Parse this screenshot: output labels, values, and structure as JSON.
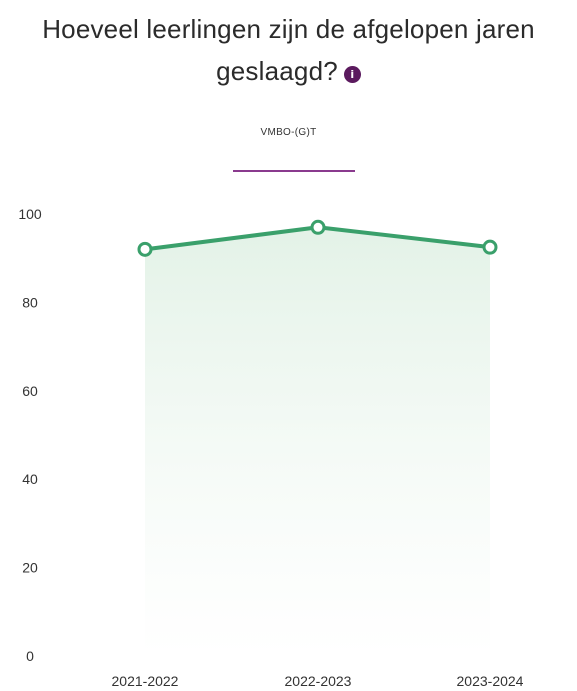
{
  "title": {
    "line1": "Hoeveel leerlingen zijn de afgelopen jaren",
    "line2": "geslaagd?",
    "info_glyph": "i"
  },
  "info_icon": "info-icon",
  "colors": {
    "line": "#3aa06b",
    "area_top": "#e3f2e7",
    "legend_swatch": "#8a3a8e",
    "info_icon": "#5b1a5e"
  },
  "chart_data": {
    "type": "line",
    "legend_position": "top-center",
    "categories": [
      "2021-2022",
      "2022-2023",
      "2023-2024"
    ],
    "series": [
      {
        "name": "VMBO-(G)T",
        "values": [
          92,
          97,
          92.5
        ]
      }
    ],
    "ylim": [
      0,
      100
    ],
    "yticks": [
      0,
      20,
      40,
      60,
      80,
      100
    ],
    "grid": false,
    "area_fill": true,
    "xlabel": "",
    "ylabel": ""
  }
}
